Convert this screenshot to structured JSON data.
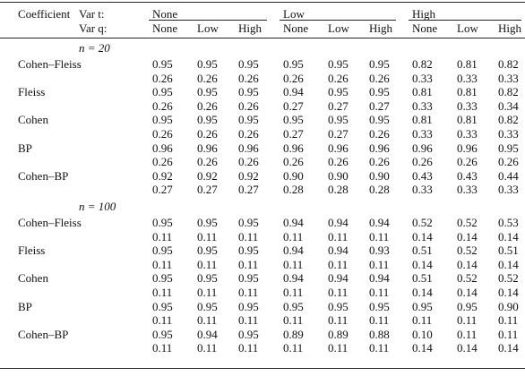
{
  "table": {
    "header": {
      "coefficient": "Coefficient",
      "var_t": "Var t:",
      "var_q": "Var q:",
      "groups": [
        "None",
        "Low",
        "High"
      ],
      "subcolumns": [
        "None",
        "Low",
        "High",
        "None",
        "Low",
        "High",
        "None",
        "Low",
        "High"
      ]
    },
    "sections": [
      {
        "label": "n = 20",
        "rows": [
          {
            "name": "Cohen–Fleiss",
            "values": [
              [
                "0.95",
                "0.95",
                "0.95",
                "0.95",
                "0.95",
                "0.95",
                "0.82",
                "0.81",
                "0.82"
              ],
              [
                "0.26",
                "0.26",
                "0.26",
                "0.26",
                "0.26",
                "0.26",
                "0.33",
                "0.33",
                "0.33"
              ]
            ]
          },
          {
            "name": "Fleiss",
            "values": [
              [
                "0.95",
                "0.95",
                "0.95",
                "0.94",
                "0.95",
                "0.95",
                "0.81",
                "0.81",
                "0.82"
              ],
              [
                "0.26",
                "0.26",
                "0.26",
                "0.27",
                "0.27",
                "0.27",
                "0.33",
                "0.33",
                "0.34"
              ]
            ]
          },
          {
            "name": "Cohen",
            "values": [
              [
                "0.95",
                "0.95",
                "0.95",
                "0.95",
                "0.95",
                "0.95",
                "0.81",
                "0.81",
                "0.82"
              ],
              [
                "0.26",
                "0.26",
                "0.26",
                "0.27",
                "0.27",
                "0.26",
                "0.33",
                "0.33",
                "0.33"
              ]
            ]
          },
          {
            "name": "BP",
            "values": [
              [
                "0.96",
                "0.96",
                "0.96",
                "0.96",
                "0.96",
                "0.96",
                "0.96",
                "0.96",
                "0.95"
              ],
              [
                "0.26",
                "0.26",
                "0.26",
                "0.26",
                "0.26",
                "0.26",
                "0.26",
                "0.26",
                "0.26"
              ]
            ]
          },
          {
            "name": "Cohen–BP",
            "values": [
              [
                "0.92",
                "0.92",
                "0.92",
                "0.90",
                "0.90",
                "0.90",
                "0.43",
                "0.43",
                "0.44"
              ],
              [
                "0.27",
                "0.27",
                "0.27",
                "0.28",
                "0.28",
                "0.28",
                "0.33",
                "0.33",
                "0.33"
              ]
            ]
          }
        ]
      },
      {
        "label": "n = 100",
        "rows": [
          {
            "name": "Cohen–Fleiss",
            "values": [
              [
                "0.95",
                "0.95",
                "0.95",
                "0.94",
                "0.94",
                "0.94",
                "0.52",
                "0.52",
                "0.53"
              ],
              [
                "0.11",
                "0.11",
                "0.11",
                "0.11",
                "0.11",
                "0.11",
                "0.14",
                "0.14",
                "0.14"
              ]
            ]
          },
          {
            "name": "Fleiss",
            "values": [
              [
                "0.95",
                "0.95",
                "0.95",
                "0.94",
                "0.94",
                "0.93",
                "0.51",
                "0.52",
                "0.51"
              ],
              [
                "0.11",
                "0.11",
                "0.11",
                "0.11",
                "0.11",
                "0.11",
                "0.14",
                "0.14",
                "0.14"
              ]
            ]
          },
          {
            "name": "Cohen",
            "values": [
              [
                "0.95",
                "0.95",
                "0.95",
                "0.94",
                "0.94",
                "0.94",
                "0.51",
                "0.52",
                "0.52"
              ],
              [
                "0.11",
                "0.11",
                "0.11",
                "0.11",
                "0.11",
                "0.11",
                "0.14",
                "0.14",
                "0.14"
              ]
            ]
          },
          {
            "name": "BP",
            "values": [
              [
                "0.95",
                "0.95",
                "0.95",
                "0.95",
                "0.95",
                "0.95",
                "0.95",
                "0.95",
                "0.90"
              ],
              [
                "0.11",
                "0.11",
                "0.11",
                "0.11",
                "0.11",
                "0.11",
                "0.11",
                "0.11",
                "0.11"
              ]
            ]
          },
          {
            "name": "Cohen–BP",
            "values": [
              [
                "0.95",
                "0.94",
                "0.95",
                "0.89",
                "0.89",
                "0.88",
                "0.10",
                "0.11",
                "0.11"
              ],
              [
                "0.11",
                "0.11",
                "0.11",
                "0.11",
                "0.11",
                "0.11",
                "0.14",
                "0.14",
                "0.14"
              ]
            ]
          }
        ]
      }
    ]
  }
}
